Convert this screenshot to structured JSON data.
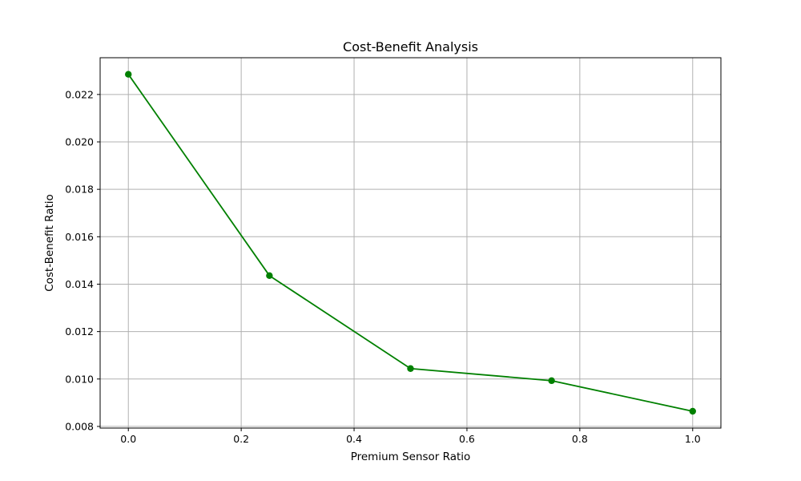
{
  "chart_data": {
    "type": "line",
    "title": "Cost-Benefit Analysis",
    "xlabel": "Premium Sensor Ratio",
    "ylabel": "Cost-Benefit Ratio",
    "x": [
      0.0,
      0.25,
      0.5,
      0.75,
      1.0
    ],
    "series": [
      {
        "values": [
          0.02285,
          0.01436,
          0.01044,
          0.00993,
          0.00864
        ],
        "color": "#008000",
        "marker": "circle"
      }
    ],
    "xlim": [
      -0.05,
      1.05
    ],
    "ylim": [
      0.00793,
      0.02355
    ],
    "xticks": [
      0.0,
      0.2,
      0.4,
      0.6,
      0.8,
      1.0
    ],
    "xtick_labels": [
      "0.0",
      "0.2",
      "0.4",
      "0.6",
      "0.8",
      "1.0"
    ],
    "yticks": [
      0.008,
      0.01,
      0.012,
      0.014,
      0.016,
      0.018,
      0.02,
      0.022
    ],
    "ytick_labels": [
      "0.008",
      "0.010",
      "0.012",
      "0.014",
      "0.016",
      "0.018",
      "0.020",
      "0.022"
    ],
    "grid": true,
    "grid_color": "#b0b0b0",
    "axis_color": "#000000"
  }
}
